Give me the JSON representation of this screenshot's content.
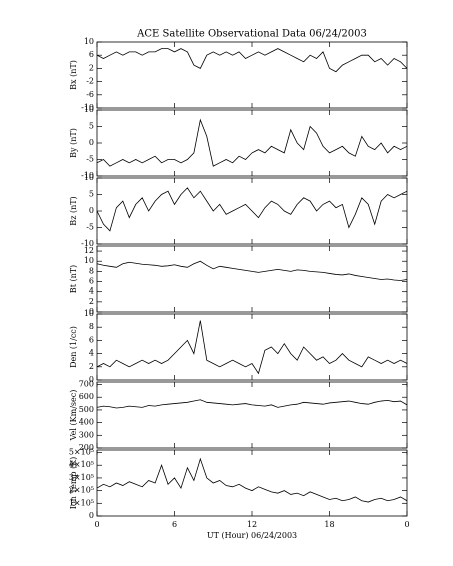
{
  "chart_data": [
    {
      "type": "line",
      "title": "ACE Satellite Observational Data  06/24/2003",
      "ylabel": "Bx (nT)",
      "color": "#000000",
      "x": [
        0,
        0.5,
        1,
        1.5,
        2,
        2.5,
        3,
        3.5,
        4,
        4.5,
        5,
        5.5,
        6,
        6.5,
        7,
        7.5,
        8,
        8.5,
        9,
        9.5,
        10,
        10.5,
        11,
        11.5,
        12,
        12.5,
        13,
        13.5,
        14,
        14.5,
        15,
        15.5,
        16,
        16.5,
        17,
        17.5,
        18,
        18.5,
        19,
        19.5,
        20,
        20.5,
        21,
        21.5,
        22,
        22.5,
        23,
        23.5,
        24
      ],
      "values": [
        6,
        5,
        6,
        7,
        6,
        7,
        7,
        6,
        7,
        7,
        8,
        8,
        7,
        8,
        7,
        3,
        2,
        6,
        7,
        6,
        7,
        6,
        7,
        5,
        6,
        7,
        6,
        7,
        8,
        7,
        6,
        5,
        4,
        6,
        5,
        7,
        2,
        1,
        3,
        4,
        5,
        6,
        6,
        4,
        5,
        3,
        5,
        4,
        2
      ],
      "xlim": [
        0,
        24
      ],
      "ylim": [
        -10,
        10
      ],
      "yticks": [
        -10,
        -6,
        -2,
        2,
        6,
        10
      ]
    },
    {
      "type": "line",
      "ylabel": "By (nT)",
      "color": "#000000",
      "x": [
        0,
        0.5,
        1,
        1.5,
        2,
        2.5,
        3,
        3.5,
        4,
        4.5,
        5,
        5.5,
        6,
        6.5,
        7,
        7.5,
        8,
        8.5,
        9,
        9.5,
        10,
        10.5,
        11,
        11.5,
        12,
        12.5,
        13,
        13.5,
        14,
        14.5,
        15,
        15.5,
        16,
        16.5,
        17,
        17.5,
        18,
        18.5,
        19,
        19.5,
        20,
        20.5,
        21,
        21.5,
        22,
        22.5,
        23,
        23.5,
        24
      ],
      "values": [
        -6,
        -5,
        -7,
        -6,
        -5,
        -6,
        -5,
        -6,
        -5,
        -4,
        -6,
        -5,
        -5,
        -6,
        -5,
        -3,
        7,
        2,
        -7,
        -6,
        -5,
        -6,
        -4,
        -5,
        -3,
        -2,
        -3,
        -1,
        -2,
        -3,
        4,
        0,
        -2,
        5,
        3,
        -1,
        -3,
        -2,
        -1,
        -3,
        -4,
        2,
        -1,
        -2,
        0,
        -3,
        -1,
        -2,
        -1
      ],
      "xlim": [
        0,
        24
      ],
      "ylim": [
        -10,
        10
      ],
      "yticks": [
        -10,
        -5,
        0,
        5,
        10
      ]
    },
    {
      "type": "line",
      "ylabel": "Bz (nT)",
      "color": "#000000",
      "x": [
        0,
        0.5,
        1,
        1.5,
        2,
        2.5,
        3,
        3.5,
        4,
        4.5,
        5,
        5.5,
        6,
        6.5,
        7,
        7.5,
        8,
        8.5,
        9,
        9.5,
        10,
        10.5,
        11,
        11.5,
        12,
        12.5,
        13,
        13.5,
        14,
        14.5,
        15,
        15.5,
        16,
        16.5,
        17,
        17.5,
        18,
        18.5,
        19,
        19.5,
        20,
        20.5,
        21,
        21.5,
        22,
        22.5,
        23,
        23.5,
        24
      ],
      "values": [
        0,
        -4,
        -6,
        1,
        3,
        -2,
        2,
        4,
        0,
        3,
        5,
        6,
        2,
        5,
        7,
        4,
        6,
        3,
        0,
        2,
        -1,
        0,
        1,
        2,
        0,
        -2,
        1,
        3,
        2,
        0,
        -1,
        2,
        4,
        3,
        0,
        2,
        3,
        1,
        2,
        -5,
        -1,
        4,
        2,
        -4,
        3,
        5,
        4,
        5,
        6
      ],
      "xlim": [
        0,
        24
      ],
      "ylim": [
        -10,
        10
      ],
      "yticks": [
        -10,
        -5,
        0,
        5,
        10
      ]
    },
    {
      "type": "line",
      "ylabel": "Bt (nT)",
      "color": "#000000",
      "x": [
        0,
        0.5,
        1,
        1.5,
        2,
        2.5,
        3,
        3.5,
        4,
        4.5,
        5,
        5.5,
        6,
        6.5,
        7,
        7.5,
        8,
        8.5,
        9,
        9.5,
        10,
        10.5,
        11,
        11.5,
        12,
        12.5,
        13,
        13.5,
        14,
        14.5,
        15,
        15.5,
        16,
        16.5,
        17,
        17.5,
        18,
        18.5,
        19,
        19.5,
        20,
        20.5,
        21,
        21.5,
        22,
        22.5,
        23,
        23.5,
        24
      ],
      "values": [
        9.5,
        9.2,
        9,
        8.8,
        9.5,
        9.8,
        9.6,
        9.4,
        9.3,
        9.2,
        9,
        9.1,
        9.3,
        9,
        8.8,
        9.5,
        10,
        9.2,
        8.5,
        9,
        8.8,
        8.6,
        8.4,
        8.2,
        8,
        7.8,
        8,
        8.2,
        8.4,
        8.2,
        8,
        8.3,
        8.2,
        8,
        7.9,
        7.8,
        7.6,
        7.4,
        7.3,
        7.5,
        7.2,
        7,
        6.8,
        6.6,
        6.4,
        6.5,
        6.3,
        6.2,
        6.4
      ],
      "xlim": [
        0,
        24
      ],
      "ylim": [
        0,
        13
      ],
      "yticks": [
        0,
        2,
        4,
        6,
        8,
        10,
        12
      ]
    },
    {
      "type": "line",
      "ylabel": "Den (1/cc)",
      "color": "#000000",
      "x": [
        0,
        0.5,
        1,
        1.5,
        2,
        2.5,
        3,
        3.5,
        4,
        4.5,
        5,
        5.5,
        6,
        6.5,
        7,
        7.5,
        8,
        8.5,
        9,
        9.5,
        10,
        10.5,
        11,
        11.5,
        12,
        12.5,
        13,
        13.5,
        14,
        14.5,
        15,
        15.5,
        16,
        16.5,
        17,
        17.5,
        18,
        18.5,
        19,
        19.5,
        20,
        20.5,
        21,
        21.5,
        22,
        22.5,
        23,
        23.5,
        24
      ],
      "values": [
        2,
        2.5,
        2,
        3,
        2.5,
        2,
        2.5,
        3,
        2.5,
        3,
        2.5,
        3,
        4,
        5,
        6,
        4,
        9,
        3,
        2.5,
        2,
        2.5,
        3,
        2.5,
        2,
        2.5,
        1,
        4.5,
        5,
        4,
        5.5,
        4,
        3,
        5,
        4,
        3,
        3.5,
        2.5,
        3,
        4,
        3,
        2.5,
        2,
        3.5,
        3,
        2.5,
        3,
        2.5,
        3,
        2.5
      ],
      "xlim": [
        0,
        24
      ],
      "ylim": [
        0,
        10
      ],
      "yticks": [
        0,
        2,
        4,
        6,
        8,
        10
      ]
    },
    {
      "type": "line",
      "ylabel": "Vel (Km/sec)",
      "color": "#000000",
      "x": [
        0,
        0.5,
        1,
        1.5,
        2,
        2.5,
        3,
        3.5,
        4,
        4.5,
        5,
        5.5,
        6,
        6.5,
        7,
        7.5,
        8,
        8.5,
        9,
        9.5,
        10,
        10.5,
        11,
        11.5,
        12,
        12.5,
        13,
        13.5,
        14,
        14.5,
        15,
        15.5,
        16,
        16.5,
        17,
        17.5,
        18,
        18.5,
        19,
        19.5,
        20,
        20.5,
        21,
        21.5,
        22,
        22.5,
        23,
        23.5,
        24
      ],
      "values": [
        520,
        530,
        525,
        515,
        520,
        530,
        525,
        520,
        535,
        530,
        540,
        545,
        550,
        555,
        560,
        570,
        580,
        560,
        555,
        550,
        545,
        540,
        545,
        550,
        540,
        535,
        530,
        540,
        520,
        530,
        540,
        545,
        560,
        555,
        550,
        545,
        555,
        560,
        565,
        570,
        560,
        550,
        545,
        560,
        570,
        575,
        565,
        570,
        540
      ],
      "xlim": [
        0,
        24
      ],
      "ylim": [
        200,
        720
      ],
      "yticks": [
        200,
        300,
        400,
        500,
        600,
        700
      ]
    },
    {
      "type": "line",
      "ylabel": "Ion Temp (K)",
      "xlabel": "UT (Hour)  06/24/2003",
      "color": "#000000",
      "x": [
        0,
        0.5,
        1,
        1.5,
        2,
        2.5,
        3,
        3.5,
        4,
        4.5,
        5,
        5.5,
        6,
        6.5,
        7,
        7.5,
        8,
        8.5,
        9,
        9.5,
        10,
        10.5,
        11,
        11.5,
        12,
        12.5,
        13,
        13.5,
        14,
        14.5,
        15,
        15.5,
        16,
        16.5,
        17,
        17.5,
        18,
        18.5,
        19,
        19.5,
        20,
        20.5,
        21,
        21.5,
        22,
        22.5,
        23,
        23.5,
        24
      ],
      "values": [
        220000,
        250000,
        230000,
        260000,
        240000,
        270000,
        250000,
        230000,
        280000,
        260000,
        400000,
        250000,
        300000,
        220000,
        380000,
        280000,
        450000,
        300000,
        260000,
        280000,
        240000,
        230000,
        250000,
        220000,
        200000,
        230000,
        210000,
        190000,
        180000,
        200000,
        170000,
        180000,
        160000,
        190000,
        170000,
        150000,
        130000,
        140000,
        120000,
        130000,
        150000,
        120000,
        110000,
        130000,
        140000,
        120000,
        130000,
        150000,
        120000
      ],
      "xlim": [
        0,
        24
      ],
      "ylim": [
        0,
        520000
      ],
      "yticks": [
        0,
        {
          "value": 100000,
          "label": "1×10⁵"
        },
        {
          "value": 200000,
          "label": "2×10⁵"
        },
        {
          "value": 300000,
          "label": "3×10⁵"
        },
        {
          "value": 400000,
          "label": "4×10⁵"
        },
        {
          "value": 500000,
          "label": "5×10⁵"
        }
      ],
      "xticks": [
        0,
        6,
        12,
        18,
        {
          "value": 24,
          "label": "0"
        }
      ]
    }
  ]
}
